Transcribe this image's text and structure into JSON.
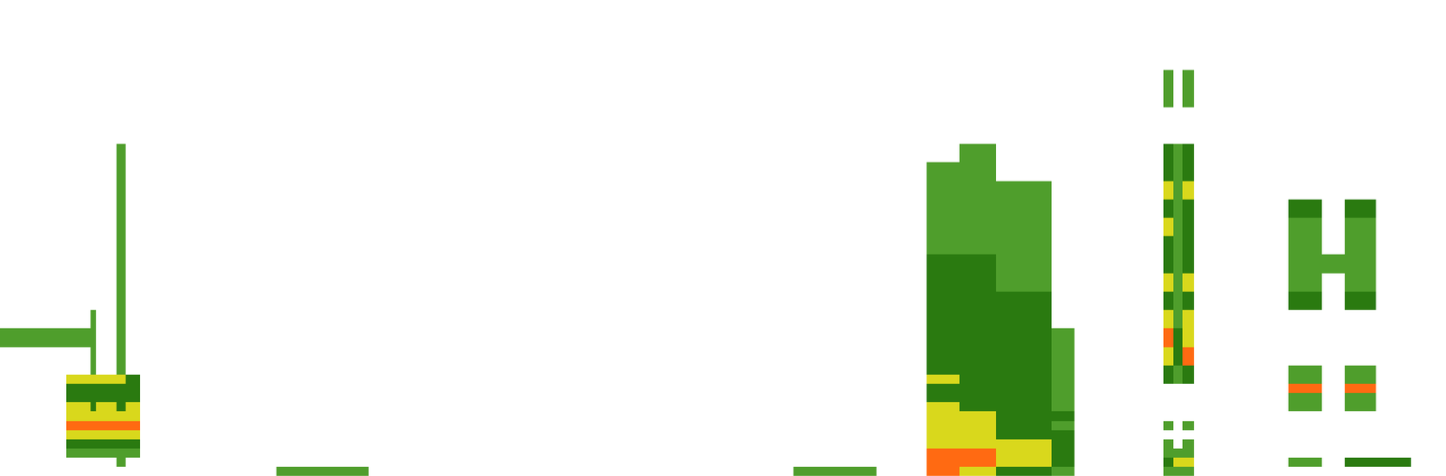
{
  "chart_data": {
    "type": "heatmap",
    "x": [
      0,
      72,
      98,
      104,
      126,
      136,
      152,
      300,
      400,
      860,
      950,
      1005,
      1040,
      1080,
      1140,
      1165,
      1262,
      1272,
      1282,
      1295,
      1397,
      1433,
      1458,
      1492,
      1530,
      1568
    ],
    "y": [
      0,
      10,
      20,
      30,
      40,
      50,
      60,
      70,
      80,
      90,
      100,
      110,
      120,
      140,
      160,
      180,
      200,
      220,
      240,
      260,
      280,
      300,
      320,
      340,
      360,
      380,
      400,
      420,
      440,
      460
    ],
    "z": [
      [
        0,
        0,
        0,
        0,
        0,
        0,
        0,
        1,
        0,
        1,
        0,
        4,
        3,
        2,
        1,
        0,
        1,
        1,
        1,
        0,
        0,
        0,
        0,
        0,
        0
      ],
      [
        0,
        0,
        0,
        0,
        1,
        0,
        0,
        0,
        0,
        0,
        0,
        4,
        4,
        3,
        2,
        0,
        2,
        3,
        3,
        0,
        1,
        0,
        2,
        2,
        0
      ],
      [
        0,
        1,
        1,
        1,
        1,
        1,
        0,
        0,
        0,
        0,
        0,
        4,
        4,
        3,
        2,
        0,
        1,
        1,
        1,
        0,
        0,
        0,
        0,
        0,
        0
      ],
      [
        0,
        2,
        2,
        2,
        2,
        2,
        0,
        0,
        0,
        0,
        0,
        3,
        3,
        3,
        2,
        0,
        1,
        0,
        1,
        0,
        0,
        0,
        0,
        0,
        0
      ],
      [
        0,
        3,
        3,
        3,
        3,
        3,
        0,
        0,
        0,
        0,
        0,
        3,
        3,
        2,
        2,
        0,
        0,
        0,
        0,
        0,
        0,
        0,
        0,
        0,
        0
      ],
      [
        0,
        4,
        4,
        4,
        4,
        4,
        0,
        0,
        0,
        0,
        0,
        3,
        3,
        2,
        1,
        0,
        1,
        0,
        1,
        0,
        0,
        0,
        0,
        0,
        0
      ],
      [
        0,
        3,
        3,
        3,
        3,
        3,
        0,
        0,
        0,
        0,
        0,
        3,
        3,
        2,
        2,
        0,
        0,
        0,
        0,
        0,
        0,
        0,
        0,
        0,
        0
      ],
      [
        0,
        3,
        2,
        3,
        2,
        3,
        0,
        0,
        0,
        0,
        0,
        3,
        2,
        2,
        1,
        0,
        0,
        0,
        0,
        0,
        1,
        0,
        1,
        0,
        0
      ],
      [
        0,
        2,
        2,
        2,
        2,
        2,
        0,
        0,
        0,
        0,
        0,
        2,
        2,
        2,
        1,
        0,
        0,
        0,
        0,
        0,
        1,
        0,
        1,
        0,
        0
      ],
      [
        0,
        2,
        2,
        2,
        2,
        2,
        0,
        0,
        0,
        0,
        0,
        2,
        2,
        2,
        1,
        0,
        0,
        0,
        0,
        0,
        4,
        0,
        4,
        0,
        0
      ],
      [
        0,
        3,
        3,
        3,
        3,
        2,
        0,
        0,
        0,
        0,
        0,
        3,
        2,
        2,
        1,
        0,
        2,
        1,
        2,
        0,
        1,
        0,
        1,
        0,
        0
      ],
      [
        0,
        0,
        1,
        0,
        1,
        0,
        0,
        0,
        0,
        0,
        0,
        2,
        2,
        2,
        1,
        0,
        2,
        1,
        2,
        0,
        1,
        0,
        1,
        0,
        0
      ],
      [
        0,
        0,
        1,
        0,
        1,
        0,
        0,
        0,
        0,
        0,
        0,
        2,
        2,
        2,
        1,
        0,
        3,
        2,
        4,
        0,
        0,
        0,
        0,
        0,
        0
      ],
      [
        1,
        1,
        1,
        0,
        1,
        0,
        0,
        0,
        0,
        0,
        0,
        2,
        2,
        2,
        1,
        0,
        4,
        2,
        3,
        0,
        0,
        0,
        0,
        0,
        0
      ],
      [
        0,
        0,
        1,
        0,
        1,
        0,
        0,
        0,
        0,
        0,
        0,
        2,
        2,
        2,
        0,
        0,
        3,
        1,
        3,
        0,
        0,
        0,
        0,
        0,
        0
      ],
      [
        0,
        0,
        0,
        0,
        1,
        0,
        0,
        0,
        0,
        0,
        0,
        2,
        2,
        2,
        0,
        0,
        2,
        1,
        2,
        0,
        2,
        0,
        2,
        0,
        0
      ],
      [
        0,
        0,
        0,
        0,
        1,
        0,
        0,
        0,
        0,
        0,
        0,
        2,
        2,
        1,
        0,
        0,
        3,
        1,
        3,
        0,
        1,
        0,
        1,
        0,
        0
      ],
      [
        0,
        0,
        0,
        0,
        1,
        0,
        0,
        0,
        0,
        0,
        0,
        2,
        2,
        1,
        0,
        0,
        2,
        1,
        2,
        0,
        1,
        1,
        1,
        0,
        0
      ],
      [
        0,
        0,
        0,
        0,
        1,
        0,
        0,
        0,
        0,
        0,
        0,
        1,
        1,
        1,
        0,
        0,
        2,
        1,
        2,
        0,
        1,
        0,
        1,
        0,
        0
      ],
      [
        0,
        0,
        0,
        0,
        1,
        0,
        0,
        0,
        0,
        0,
        0,
        1,
        1,
        1,
        0,
        0,
        3,
        1,
        2,
        0,
        1,
        0,
        1,
        0,
        0
      ],
      [
        0,
        0,
        0,
        0,
        1,
        0,
        0,
        0,
        0,
        0,
        0,
        1,
        1,
        1,
        0,
        0,
        2,
        1,
        2,
        0,
        2,
        0,
        2,
        0,
        0
      ],
      [
        0,
        0,
        0,
        0,
        1,
        0,
        0,
        0,
        0,
        0,
        0,
        1,
        1,
        1,
        0,
        0,
        3,
        1,
        3,
        0,
        0,
        0,
        0,
        0,
        0
      ],
      [
        0,
        0,
        0,
        0,
        1,
        0,
        0,
        0,
        0,
        0,
        0,
        1,
        1,
        0,
        0,
        0,
        2,
        1,
        2,
        0,
        0,
        0,
        0,
        0,
        0
      ],
      [
        0,
        0,
        0,
        0,
        1,
        0,
        0,
        0,
        0,
        0,
        0,
        0,
        1,
        0,
        0,
        0,
        2,
        1,
        2,
        0,
        0,
        0,
        0,
        0,
        0
      ],
      [
        0,
        0,
        0,
        0,
        0,
        0,
        0,
        0,
        0,
        0,
        0,
        0,
        0,
        0,
        0,
        0,
        0,
        0,
        0,
        0,
        0,
        0,
        0,
        0,
        0
      ],
      [
        0,
        0,
        0,
        0,
        0,
        0,
        0,
        0,
        0,
        0,
        0,
        0,
        0,
        0,
        0,
        0,
        0,
        0,
        0,
        0,
        0,
        0,
        0,
        0,
        0
      ],
      [
        0,
        0,
        0,
        0,
        0,
        0,
        0,
        0,
        0,
        0,
        0,
        0,
        0,
        0,
        0,
        0,
        1,
        0,
        1,
        0,
        0,
        0,
        0,
        0,
        0
      ],
      [
        0,
        0,
        0,
        0,
        0,
        0,
        0,
        0,
        0,
        0,
        0,
        0,
        0,
        0,
        0,
        0,
        1,
        0,
        1,
        0,
        0,
        0,
        0,
        0,
        0
      ],
      [
        0,
        0,
        0,
        0,
        0,
        0,
        0,
        0,
        0,
        0,
        0,
        0,
        0,
        0,
        0,
        0,
        0,
        0,
        0,
        0,
        0,
        0,
        0,
        0,
        0
      ]
    ],
    "zlim": [
      0,
      4
    ],
    "colors": [
      "#ffffff",
      "#4f9e2c",
      "#2a7a10",
      "#d9d81c",
      "#ff6a12"
    ],
    "xlim": [
      0,
      1568
    ],
    "ylim": [
      0,
      516
    ],
    "tick_labels": false,
    "grid": false
  }
}
